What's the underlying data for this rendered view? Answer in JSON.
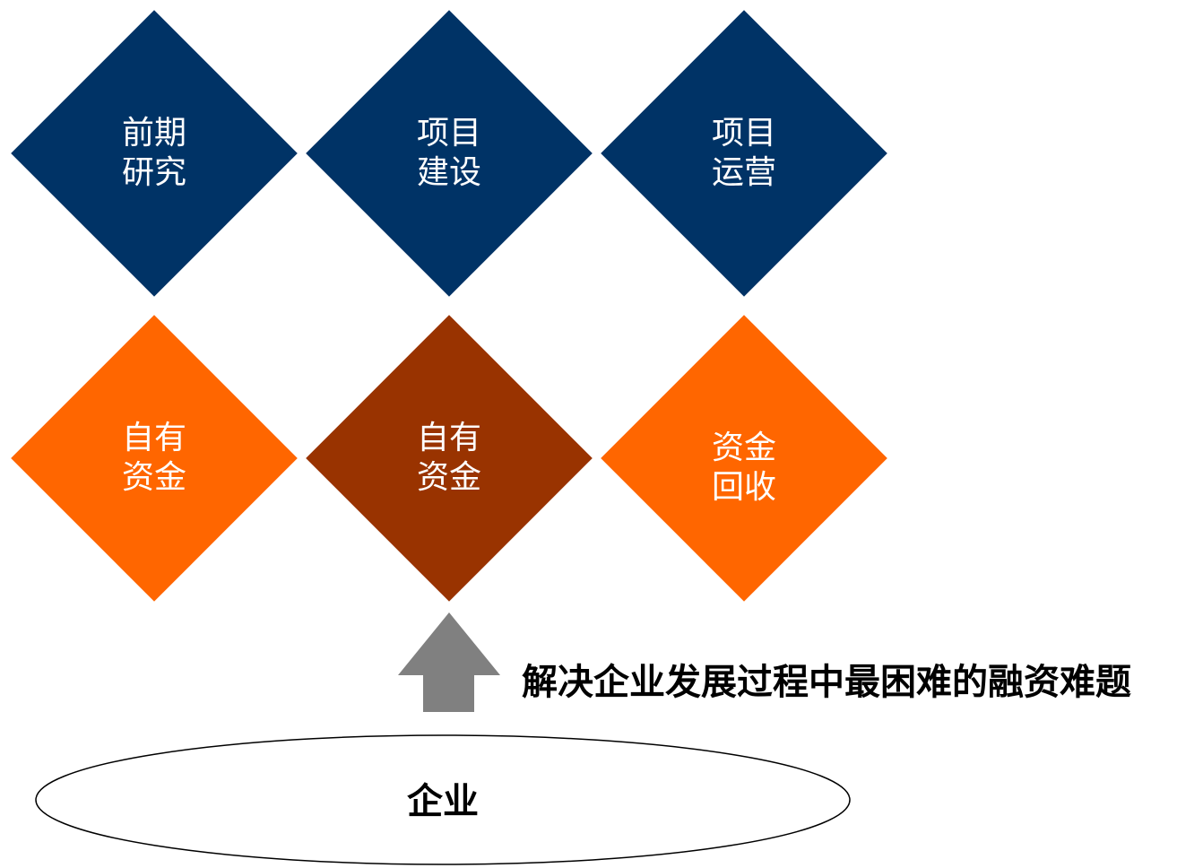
{
  "colors": {
    "navy": "#003366",
    "orange": "#ff6600",
    "brown": "#993300",
    "arrow_gray": "#808080",
    "navy_text": "#ffffff",
    "orange_text": "#ffffff",
    "brown_text": "#ffffff"
  },
  "stages": [
    {
      "line1": "前期",
      "line2": "研究"
    },
    {
      "line1": "项目",
      "line2": "建设"
    },
    {
      "line1": "项目",
      "line2": "运营"
    }
  ],
  "funding": [
    {
      "line1": "自有",
      "line2": "资金"
    },
    {
      "line1": "自有",
      "line2": "资金"
    },
    {
      "line1": "资金",
      "line2": "回收"
    }
  ],
  "arrow_icon": "up-arrow-icon",
  "headline": "解决企业发展过程中最困难的融资难题",
  "base_label": "企业"
}
